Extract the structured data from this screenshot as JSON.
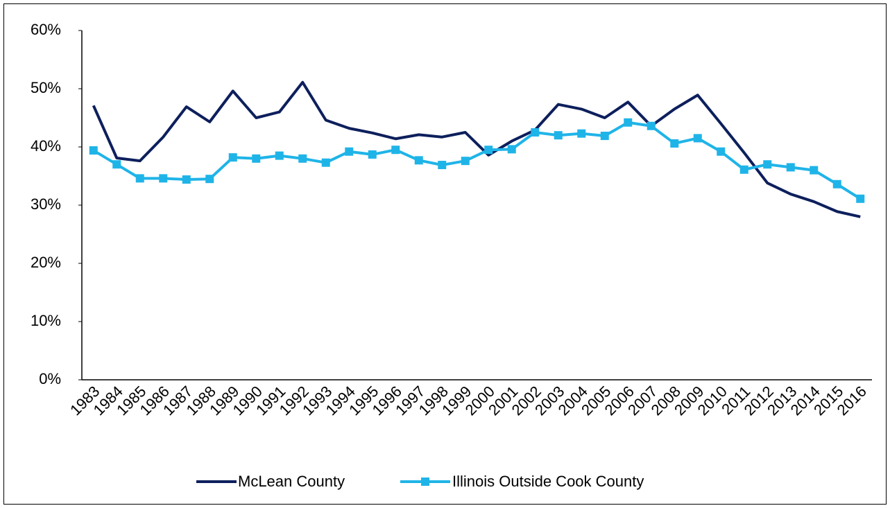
{
  "chart_data": {
    "type": "line",
    "categories": [
      "1983",
      "1984",
      "1985",
      "1986",
      "1987",
      "1988",
      "1989",
      "1990",
      "1991",
      "1992",
      "1993",
      "1994",
      "1995",
      "1996",
      "1997",
      "1998",
      "1999",
      "2000",
      "2001",
      "2002",
      "2003",
      "2004",
      "2005",
      "2006",
      "2007",
      "2008",
      "2009",
      "2010",
      "2011",
      "2012",
      "2013",
      "2014",
      "2015",
      "2016"
    ],
    "series": [
      {
        "name": "McLean County",
        "color": "#0d1f5c",
        "marker": "none",
        "values": [
          47.1,
          38.1,
          37.6,
          41.7,
          46.9,
          44.3,
          49.6,
          45.0,
          46.0,
          51.1,
          44.6,
          43.2,
          42.4,
          41.4,
          42.1,
          41.7,
          42.5,
          38.6,
          41.0,
          42.9,
          47.3,
          46.5,
          45.0,
          47.7,
          43.6,
          46.5,
          48.9,
          44.0,
          39.0,
          33.8,
          31.9,
          30.6,
          28.9,
          28.0
        ]
      },
      {
        "name": "Illinois Outside Cook County",
        "color": "#1fb4e8",
        "marker": "square",
        "values": [
          39.4,
          37.0,
          34.6,
          34.6,
          34.4,
          34.5,
          38.2,
          38.0,
          38.5,
          38.0,
          37.3,
          39.2,
          38.7,
          39.5,
          37.7,
          36.9,
          37.6,
          39.5,
          39.6,
          42.5,
          42.0,
          42.3,
          41.9,
          44.2,
          43.6,
          40.6,
          41.5,
          39.2,
          36.1,
          37.0,
          36.5,
          36.0,
          33.6,
          31.1
        ]
      }
    ],
    "ylim": [
      0,
      60
    ],
    "yticks": [
      {
        "value": 0,
        "label": "0%"
      },
      {
        "value": 10,
        "label": "10%"
      },
      {
        "value": 20,
        "label": "20%"
      },
      {
        "value": 30,
        "label": "30%"
      },
      {
        "value": 40,
        "label": "40%"
      },
      {
        "value": 50,
        "label": "50%"
      },
      {
        "value": 60,
        "label": "60%"
      }
    ],
    "grid": false,
    "legend": "bottom"
  }
}
